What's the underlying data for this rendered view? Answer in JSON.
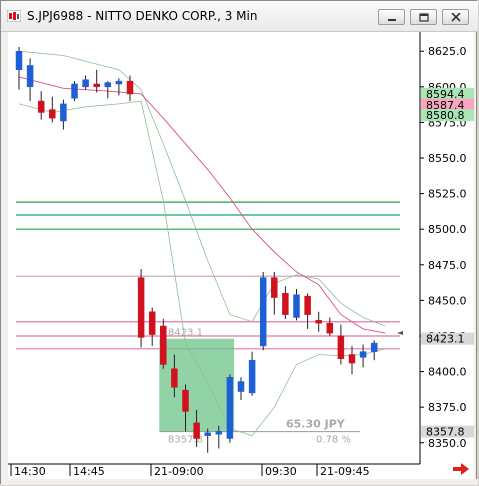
{
  "window": {
    "title": "S.JPJ6988 - NITTO DENKO CORP., 3 Min"
  },
  "price_axis": {
    "ticks": [
      "8625.0",
      "8600.0",
      "8575.0",
      "8550.0",
      "8525.0",
      "8500.0",
      "8475.0",
      "8450.0",
      "8425.0",
      "8400.0",
      "8375.0",
      "8350.0"
    ],
    "labels": [
      {
        "text": "8594.4",
        "price": 8594.4,
        "bg": "#a9e5b5"
      },
      {
        "text": "8587.4",
        "price": 8587.4,
        "bg": "#f9a5c0"
      },
      {
        "text": "8580.8",
        "price": 8580.8,
        "bg": "#a9e5b5"
      },
      {
        "text": "8423.1",
        "price": 8423.1,
        "bg": "#d8d8d8"
      },
      {
        "text": "8357.8",
        "price": 8357.8,
        "bg": "#d8d8d8"
      }
    ]
  },
  "time_axis": {
    "labels": [
      "14:30",
      "14:45",
      "21-09:00",
      "09:30",
      "21-09:45"
    ]
  },
  "measure_tool": {
    "start_price_label": "8423.1",
    "end_price_label": "8357.8",
    "distance": "65.30  JPY",
    "percent": "0.78 %"
  },
  "chart_data": {
    "type": "candlestick",
    "interval": "3 Min",
    "symbol": "S.JPJ6988",
    "candles": [
      {
        "o": 8612,
        "h": 8628,
        "l": 8598,
        "c": 8625
      },
      {
        "o": 8600,
        "h": 8620,
        "l": 8590,
        "c": 8615
      },
      {
        "o": 8590,
        "h": 8597,
        "l": 8577,
        "c": 8582
      },
      {
        "o": 8584,
        "h": 8593,
        "l": 8575,
        "c": 8578
      },
      {
        "o": 8576,
        "h": 8591,
        "l": 8570,
        "c": 8588
      },
      {
        "o": 8592,
        "h": 8604,
        "l": 8590,
        "c": 8602
      },
      {
        "o": 8600,
        "h": 8608,
        "l": 8598,
        "c": 8605
      },
      {
        "o": 8602,
        "h": 8612,
        "l": 8596,
        "c": 8600
      },
      {
        "o": 8600,
        "h": 8604,
        "l": 8592,
        "c": 8603
      },
      {
        "o": 8602,
        "h": 8606,
        "l": 8594,
        "c": 8604
      },
      {
        "o": 8604,
        "h": 8608,
        "l": 8590,
        "c": 8595
      },
      {
        "o": 8466,
        "h": 8472,
        "l": 8417,
        "c": 8424
      },
      {
        "o": 8442,
        "h": 8445,
        "l": 8418,
        "c": 8426
      },
      {
        "o": 8432,
        "h": 8437,
        "l": 8402,
        "c": 8405
      },
      {
        "o": 8402,
        "h": 8412,
        "l": 8382,
        "c": 8389
      },
      {
        "o": 8387,
        "h": 8391,
        "l": 8358,
        "c": 8372
      },
      {
        "o": 8364,
        "h": 8373,
        "l": 8347,
        "c": 8353
      },
      {
        "o": 8355,
        "h": 8360,
        "l": 8343,
        "c": 8357
      },
      {
        "o": 8356,
        "h": 8362,
        "l": 8346,
        "c": 8358
      },
      {
        "o": 8353,
        "h": 8398,
        "l": 8350,
        "c": 8396
      },
      {
        "o": 8386,
        "h": 8396,
        "l": 8380,
        "c": 8393
      },
      {
        "o": 8385,
        "h": 8414,
        "l": 8383,
        "c": 8408
      },
      {
        "o": 8418,
        "h": 8470,
        "l": 8415,
        "c": 8466
      },
      {
        "o": 8466,
        "h": 8470,
        "l": 8440,
        "c": 8452
      },
      {
        "o": 8455,
        "h": 8460,
        "l": 8437,
        "c": 8440
      },
      {
        "o": 8438,
        "h": 8458,
        "l": 8436,
        "c": 8454
      },
      {
        "o": 8453,
        "h": 8455,
        "l": 8430,
        "c": 8440
      },
      {
        "o": 8436,
        "h": 8442,
        "l": 8428,
        "c": 8434
      },
      {
        "o": 8434,
        "h": 8438,
        "l": 8425,
        "c": 8427
      },
      {
        "o": 8425,
        "h": 8433,
        "l": 8405,
        "c": 8409
      },
      {
        "o": 8412,
        "h": 8418,
        "l": 8398,
        "c": 8406
      },
      {
        "o": 8410,
        "h": 8419,
        "l": 8403,
        "c": 8414
      },
      {
        "o": 8414,
        "h": 8422,
        "l": 8408,
        "c": 8420
      }
    ],
    "bollinger_mid": [
      [
        0,
        8607
      ],
      [
        4,
        8599
      ],
      [
        8,
        8597
      ],
      [
        11,
        8595
      ],
      [
        13,
        8578
      ],
      [
        15,
        8560
      ],
      [
        17,
        8542
      ],
      [
        19,
        8522
      ],
      [
        21,
        8500
      ],
      [
        23,
        8484
      ],
      [
        25,
        8470
      ],
      [
        27,
        8461
      ],
      [
        29,
        8440
      ],
      [
        31,
        8430
      ],
      [
        33,
        8427
      ]
    ],
    "bollinger_upper": [
      [
        0,
        8625
      ],
      [
        4,
        8622
      ],
      [
        7,
        8616
      ],
      [
        9,
        8612
      ],
      [
        11,
        8598
      ],
      [
        13,
        8560
      ],
      [
        15,
        8520
      ],
      [
        17,
        8478
      ],
      [
        19,
        8440
      ],
      [
        21,
        8435
      ],
      [
        23,
        8462
      ],
      [
        25,
        8468
      ],
      [
        27,
        8465
      ],
      [
        29,
        8448
      ],
      [
        31,
        8438
      ],
      [
        33,
        8432
      ]
    ],
    "bollinger_lower": [
      [
        0,
        8588
      ],
      [
        3,
        8582
      ],
      [
        6,
        8586
      ],
      [
        9,
        8588
      ],
      [
        11,
        8590
      ],
      [
        13,
        8520
      ],
      [
        15,
        8420
      ],
      [
        17,
        8392
      ],
      [
        19,
        8360
      ],
      [
        21,
        8355
      ],
      [
        23,
        8375
      ],
      [
        25,
        8405
      ],
      [
        27,
        8412
      ],
      [
        29,
        8411
      ],
      [
        31,
        8412
      ],
      [
        33,
        8416
      ]
    ],
    "horizontal_lines": [
      {
        "price": 8519,
        "color": "#1fa64a"
      },
      {
        "price": 8510,
        "color": "#1aa56a"
      },
      {
        "price": 8500,
        "color": "#1fa64a"
      },
      {
        "price": 8467,
        "color": "#c8a0b0"
      },
      {
        "price": 8435,
        "color": "#e07aa8"
      },
      {
        "price": 8425,
        "color": "#e07aa8"
      },
      {
        "price": 8416,
        "color": "#e07aa8"
      }
    ],
    "measure": {
      "from_price": 8423.1,
      "to_price": 8357.8,
      "from_index": 13,
      "to_index": 19.2
    },
    "ylim": [
      8340,
      8635
    ],
    "colors": {
      "up": "#1e5fd6",
      "down": "#d0121e",
      "mid": "#e04a8a",
      "band": "#8fbf8f"
    }
  }
}
